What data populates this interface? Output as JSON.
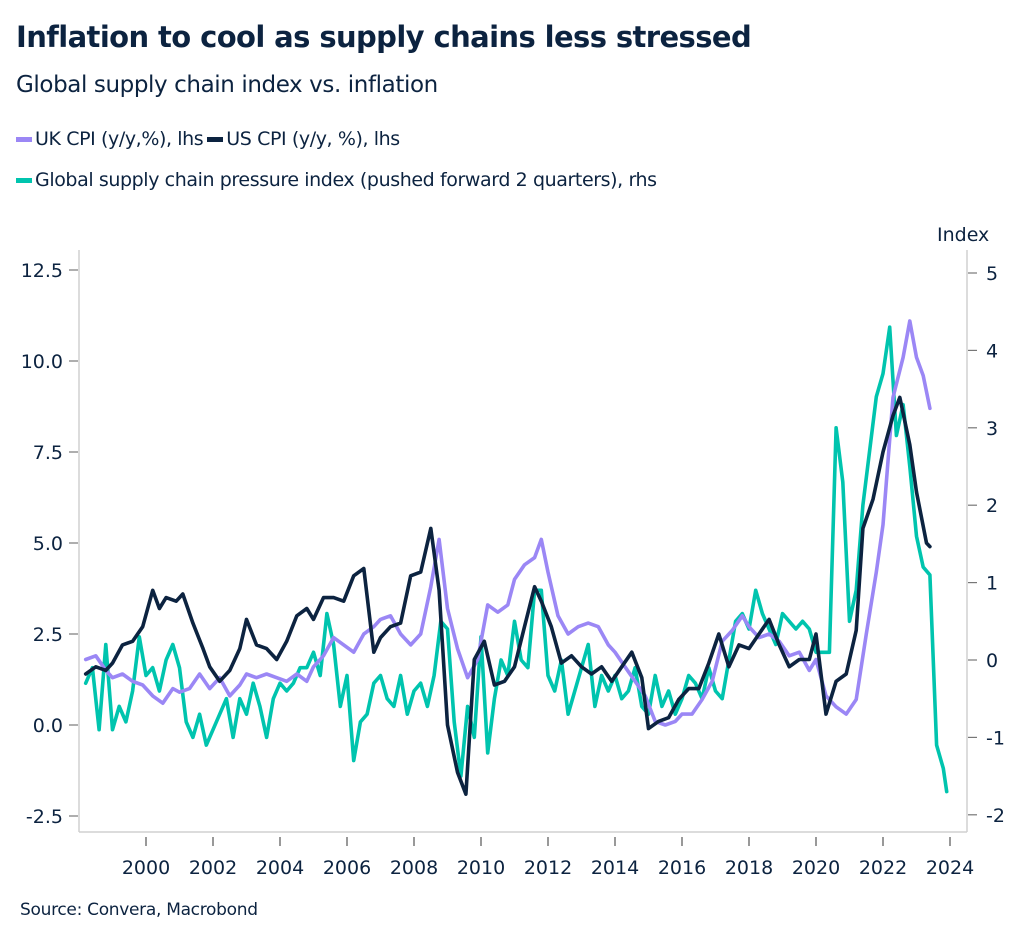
{
  "header": {
    "title": "Inflation to cool as supply chains less stressed",
    "subtitle": "Global supply chain index vs. inflation"
  },
  "legend": [
    {
      "label": "UK CPI (y/y,%), lhs",
      "color": "#9b87f5"
    },
    {
      "label": "US CPI (y/y, %), lhs",
      "color": "#0c2340"
    },
    {
      "label": "Global supply chain pressure index (pushed forward 2 quarters), rhs",
      "color": "#00c4ae"
    }
  ],
  "footer": {
    "source": "Source: Convera, Macrobond"
  },
  "chart_data": {
    "type": "line",
    "title": "Inflation to cool as supply chains less stressed",
    "subtitle": "Global supply chain index vs. inflation",
    "xlabel": "",
    "ylabel_left": "",
    "ylabel_right": "Index",
    "xlim": [
      1998.0,
      2024.5
    ],
    "ylim_left": [
      -3.0,
      13.0
    ],
    "ylim_right": [
      -2.2,
      5.3
    ],
    "x_ticks": [
      "2000",
      "2002",
      "2004",
      "2006",
      "2008",
      "2010",
      "2012",
      "2014",
      "2016",
      "2018",
      "2020",
      "2022",
      "2024"
    ],
    "y_ticks_left": [
      "12.5",
      "10.0",
      "7.5",
      "5.0",
      "2.5",
      "0.0",
      "-2.5"
    ],
    "y_ticks_right": [
      "5",
      "4",
      "3",
      "2",
      "1",
      "0",
      "-1",
      "-2"
    ],
    "grid": false,
    "legend_position": "top-left",
    "series": [
      {
        "name": "UK CPI (y/y,%), lhs",
        "axis": "left",
        "color": "#9b87f5",
        "x": [
          1998.2,
          1998.5,
          1998.8,
          1999.0,
          1999.3,
          1999.6,
          1999.9,
          2000.2,
          2000.5,
          2000.8,
          2001.0,
          2001.3,
          2001.6,
          2001.9,
          2002.2,
          2002.5,
          2002.8,
          2003.0,
          2003.3,
          2003.6,
          2003.9,
          2004.2,
          2004.5,
          2004.8,
          2005.0,
          2005.3,
          2005.6,
          2005.9,
          2006.2,
          2006.5,
          2006.8,
          2007.0,
          2007.3,
          2007.6,
          2007.9,
          2008.2,
          2008.5,
          2008.75,
          2009.0,
          2009.3,
          2009.6,
          2009.9,
          2010.2,
          2010.5,
          2010.8,
          2011.0,
          2011.3,
          2011.6,
          2011.8,
          2012.0,
          2012.3,
          2012.6,
          2012.9,
          2013.2,
          2013.5,
          2013.8,
          2014.0,
          2014.3,
          2014.6,
          2014.9,
          2015.2,
          2015.5,
          2015.8,
          2016.0,
          2016.3,
          2016.6,
          2016.9,
          2017.2,
          2017.5,
          2017.8,
          2018.0,
          2018.3,
          2018.6,
          2018.9,
          2019.2,
          2019.5,
          2019.8,
          2020.0,
          2020.3,
          2020.6,
          2020.9,
          2021.2,
          2021.5,
          2021.8,
          2022.0,
          2022.3,
          2022.6,
          2022.8,
          2023.0,
          2023.2,
          2023.4
        ],
        "values": [
          1.8,
          1.9,
          1.5,
          1.3,
          1.4,
          1.2,
          1.1,
          0.8,
          0.6,
          1.0,
          0.9,
          1.0,
          1.4,
          1.0,
          1.3,
          0.8,
          1.1,
          1.4,
          1.3,
          1.4,
          1.3,
          1.2,
          1.4,
          1.2,
          1.6,
          1.9,
          2.4,
          2.2,
          2.0,
          2.5,
          2.7,
          2.9,
          3.0,
          2.5,
          2.2,
          2.5,
          3.8,
          5.1,
          3.2,
          2.1,
          1.3,
          1.8,
          3.3,
          3.1,
          3.3,
          4.0,
          4.4,
          4.6,
          5.1,
          4.2,
          3.0,
          2.5,
          2.7,
          2.8,
          2.7,
          2.2,
          2.0,
          1.6,
          1.2,
          0.8,
          0.1,
          0.0,
          0.1,
          0.3,
          0.3,
          0.7,
          1.2,
          2.3,
          2.6,
          3.0,
          2.7,
          2.4,
          2.5,
          2.3,
          1.9,
          2.0,
          1.5,
          1.8,
          0.8,
          0.5,
          0.3,
          0.7,
          2.5,
          4.2,
          5.5,
          9.0,
          10.1,
          11.1,
          10.1,
          9.6,
          8.7
        ]
      },
      {
        "name": "US CPI (y/y, %), lhs",
        "axis": "left",
        "color": "#0c2340",
        "x": [
          1998.2,
          1998.5,
          1998.8,
          1999.0,
          1999.3,
          1999.6,
          1999.9,
          2000.2,
          2000.4,
          2000.6,
          2000.9,
          2001.1,
          2001.4,
          2001.7,
          2001.9,
          2002.2,
          2002.5,
          2002.8,
          2003.0,
          2003.3,
          2003.6,
          2003.9,
          2004.2,
          2004.5,
          2004.8,
          2005.0,
          2005.3,
          2005.6,
          2005.9,
          2006.2,
          2006.5,
          2006.8,
          2007.0,
          2007.3,
          2007.6,
          2007.9,
          2008.2,
          2008.5,
          2008.75,
          2009.0,
          2009.3,
          2009.55,
          2009.8,
          2010.1,
          2010.4,
          2010.7,
          2011.0,
          2011.3,
          2011.6,
          2011.8,
          2012.1,
          2012.4,
          2012.7,
          2013.0,
          2013.3,
          2013.6,
          2013.9,
          2014.2,
          2014.5,
          2014.8,
          2015.0,
          2015.3,
          2015.6,
          2015.9,
          2016.2,
          2016.5,
          2016.8,
          2017.1,
          2017.4,
          2017.7,
          2018.0,
          2018.3,
          2018.6,
          2018.9,
          2019.2,
          2019.5,
          2019.8,
          2020.0,
          2020.3,
          2020.6,
          2020.9,
          2021.2,
          2021.4,
          2021.7,
          2022.0,
          2022.3,
          2022.5,
          2022.8,
          2023.0,
          2023.3,
          2023.4
        ],
        "values": [
          1.4,
          1.6,
          1.5,
          1.7,
          2.2,
          2.3,
          2.7,
          3.7,
          3.2,
          3.5,
          3.4,
          3.6,
          2.8,
          2.1,
          1.6,
          1.2,
          1.5,
          2.1,
          2.9,
          2.2,
          2.1,
          1.8,
          2.3,
          3.0,
          3.2,
          2.9,
          3.5,
          3.5,
          3.4,
          4.1,
          4.3,
          2.0,
          2.4,
          2.7,
          2.8,
          4.1,
          4.2,
          5.4,
          3.7,
          0.0,
          -1.3,
          -1.9,
          1.8,
          2.3,
          1.1,
          1.2,
          1.6,
          2.7,
          3.8,
          3.4,
          2.7,
          1.7,
          1.9,
          1.6,
          1.4,
          1.6,
          1.2,
          1.6,
          2.0,
          1.3,
          -0.1,
          0.1,
          0.2,
          0.7,
          1.0,
          1.0,
          1.7,
          2.5,
          1.6,
          2.2,
          2.1,
          2.5,
          2.9,
          2.2,
          1.6,
          1.8,
          1.8,
          2.5,
          0.3,
          1.2,
          1.4,
          2.6,
          5.4,
          6.2,
          7.5,
          8.5,
          9.0,
          7.7,
          6.4,
          5.0,
          4.9
        ]
      },
      {
        "name": "Global supply chain pressure index (pushed forward 2 quarters), rhs",
        "axis": "right",
        "color": "#00c4ae",
        "x": [
          1998.2,
          1998.4,
          1998.6,
          1998.8,
          1999.0,
          1999.2,
          1999.4,
          1999.6,
          1999.8,
          2000.0,
          2000.2,
          2000.4,
          2000.6,
          2000.8,
          2001.0,
          2001.2,
          2001.4,
          2001.6,
          2001.8,
          2002.0,
          2002.2,
          2002.4,
          2002.6,
          2002.8,
          2003.0,
          2003.2,
          2003.4,
          2003.6,
          2003.8,
          2004.0,
          2004.2,
          2004.4,
          2004.6,
          2004.8,
          2005.0,
          2005.2,
          2005.4,
          2005.6,
          2005.8,
          2006.0,
          2006.2,
          2006.4,
          2006.6,
          2006.8,
          2007.0,
          2007.2,
          2007.4,
          2007.6,
          2007.8,
          2008.0,
          2008.2,
          2008.4,
          2008.6,
          2008.8,
          2009.0,
          2009.2,
          2009.4,
          2009.6,
          2009.8,
          2010.0,
          2010.2,
          2010.4,
          2010.6,
          2010.8,
          2011.0,
          2011.2,
          2011.4,
          2011.6,
          2011.8,
          2012.0,
          2012.2,
          2012.4,
          2012.6,
          2012.8,
          2013.0,
          2013.2,
          2013.4,
          2013.6,
          2013.8,
          2014.0,
          2014.2,
          2014.4,
          2014.6,
          2014.8,
          2015.0,
          2015.2,
          2015.4,
          2015.6,
          2015.8,
          2016.0,
          2016.2,
          2016.4,
          2016.6,
          2016.8,
          2017.0,
          2017.2,
          2017.4,
          2017.6,
          2017.8,
          2018.0,
          2018.2,
          2018.4,
          2018.6,
          2018.8,
          2019.0,
          2019.2,
          2019.4,
          2019.6,
          2019.8,
          2020.0,
          2020.2,
          2020.4,
          2020.6,
          2020.8,
          2021.0,
          2021.2,
          2021.4,
          2021.6,
          2021.8,
          2022.0,
          2022.2,
          2022.4,
          2022.6,
          2022.8,
          2023.0,
          2023.2,
          2023.4,
          2023.6,
          2023.8,
          2023.9
        ],
        "values": [
          -0.3,
          -0.1,
          -0.9,
          0.2,
          -0.9,
          -0.6,
          -0.8,
          -0.4,
          0.3,
          -0.2,
          -0.1,
          -0.4,
          0.0,
          0.2,
          -0.1,
          -0.8,
          -1.0,
          -0.7,
          -1.1,
          -0.9,
          -0.7,
          -0.5,
          -1.0,
          -0.5,
          -0.7,
          -0.3,
          -0.6,
          -1.0,
          -0.5,
          -0.3,
          -0.4,
          -0.3,
          -0.1,
          -0.1,
          0.1,
          -0.2,
          0.6,
          0.2,
          -0.6,
          -0.2,
          -1.3,
          -0.8,
          -0.7,
          -0.3,
          -0.2,
          -0.5,
          -0.6,
          -0.2,
          -0.7,
          -0.4,
          -0.3,
          -0.6,
          -0.2,
          0.5,
          0.4,
          -0.8,
          -1.5,
          -0.6,
          -1.0,
          0.3,
          -1.2,
          -0.5,
          0.0,
          -0.2,
          0.5,
          0.0,
          -0.1,
          0.9,
          0.9,
          -0.2,
          -0.4,
          0.0,
          -0.7,
          -0.4,
          -0.1,
          0.2,
          -0.6,
          -0.2,
          -0.4,
          -0.2,
          -0.5,
          -0.4,
          -0.1,
          -0.6,
          -0.7,
          -0.2,
          -0.6,
          -0.4,
          -0.7,
          -0.5,
          -0.2,
          -0.3,
          -0.5,
          -0.1,
          -0.4,
          -0.5,
          0.0,
          0.5,
          0.6,
          0.4,
          0.9,
          0.6,
          0.4,
          0.2,
          0.6,
          0.5,
          0.4,
          0.5,
          0.4,
          0.1,
          0.1,
          0.1,
          3.0,
          2.3,
          0.5,
          0.9,
          2.0,
          2.7,
          3.4,
          3.7,
          4.3,
          2.9,
          3.3,
          2.5,
          1.6,
          1.2,
          1.1,
          -1.1,
          -1.4,
          -1.7
        ]
      }
    ]
  }
}
